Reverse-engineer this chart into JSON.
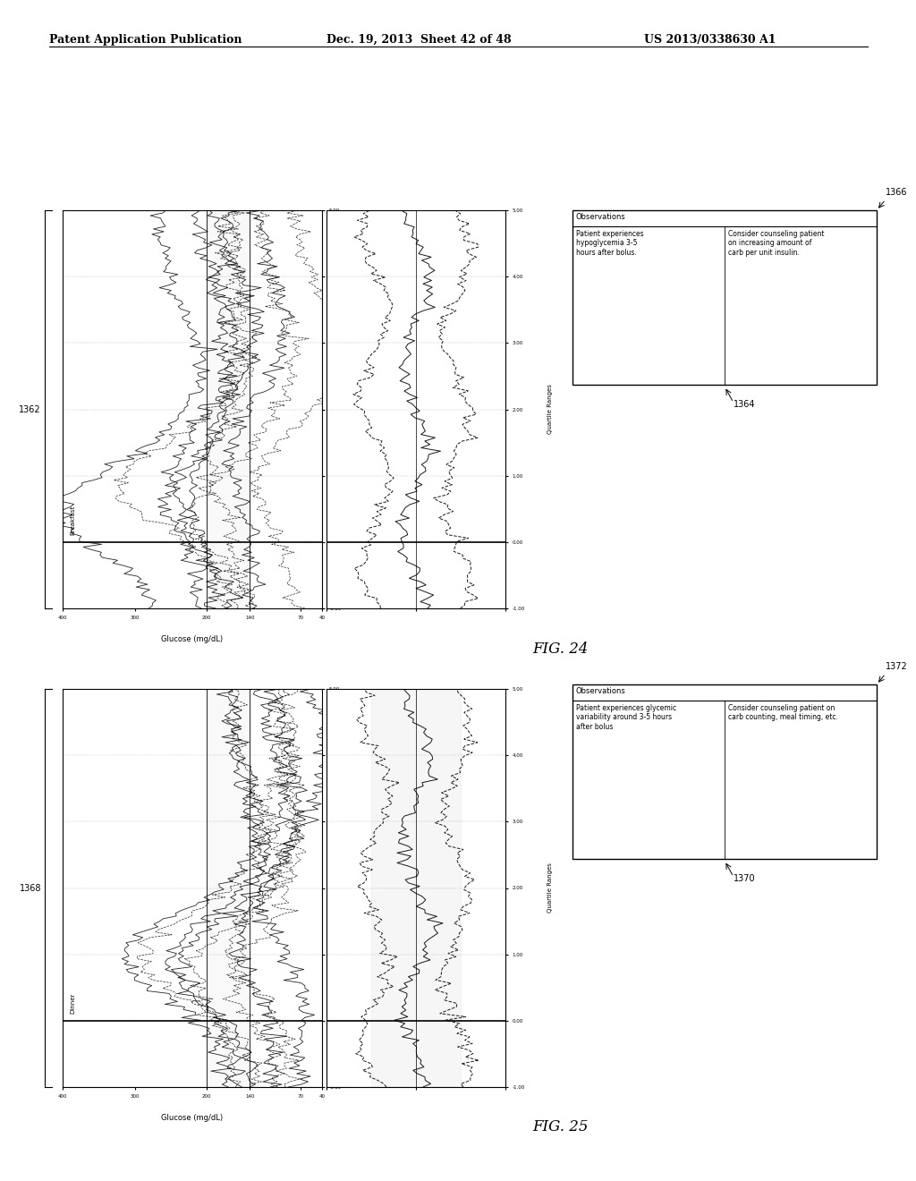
{
  "header_left": "Patent Application Publication",
  "header_mid": "Dec. 19, 2013  Sheet 42 of 48",
  "header_right": "US 2013/0338630 A1",
  "fig24_label": "FIG. 24",
  "fig25_label": "FIG. 25",
  "label_1362": "1362",
  "label_1364": "1364",
  "label_1366": "1366",
  "label_1368": "1368",
  "label_1370": "1370",
  "label_1372": "1372",
  "breakfast_label": "Breakfast",
  "dinner_label": "Dinner",
  "quartile_label": "Quartile Ranges",
  "glucose_label": "Glucose (mg/dL)",
  "obs_header": "Observations",
  "obs1_row1": "Patient experiences\nhypoglycemia 3-5\nhours after bolus.",
  "obs1_row2": "Consider counseling patient\non increasing amount of\ncarb per unit insulin.",
  "obs2_row1": "Patient experiences glycemic\nvariability around 3-5 hours\nafter bolus",
  "obs2_row2": "Consider counseling patient on\ncarb counting, meal timing, etc.",
  "bg_color": "#ffffff"
}
